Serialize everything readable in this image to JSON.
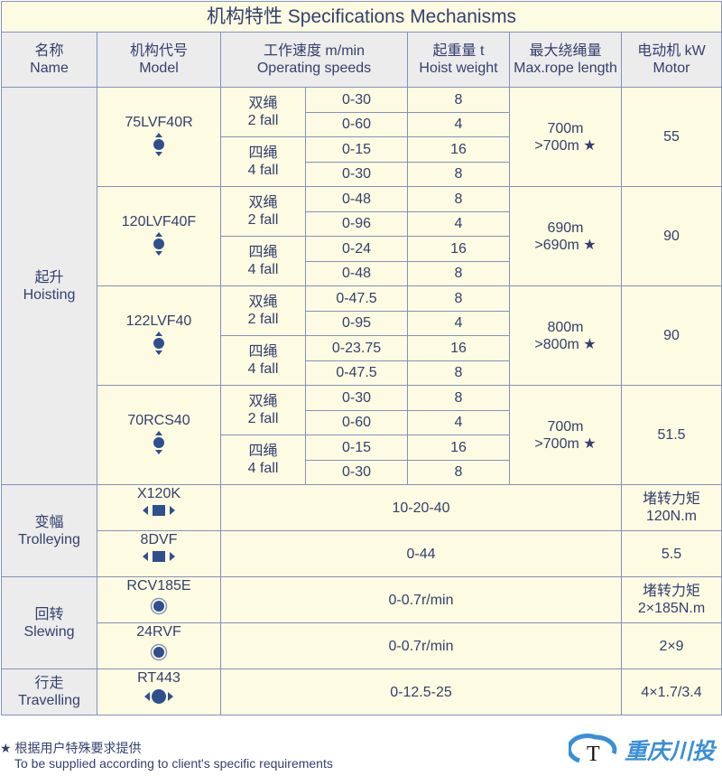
{
  "title": "机构特性 Specifications Mechanisms",
  "headers": [
    {
      "cn": "名称",
      "en": "Name"
    },
    {
      "cn": "机构代号",
      "en": "Model"
    },
    {
      "cn": "工作速度 m/min",
      "en": "Operating speeds"
    },
    {
      "cn": "起重量 t",
      "en": "Hoist weight"
    },
    {
      "cn": "最大绕绳量",
      "en": "Max.rope length"
    },
    {
      "cn": "电动机 kW",
      "en": "Motor"
    }
  ],
  "hoisting": {
    "cn": "起升",
    "en": "Hoisting",
    "models": [
      {
        "model": "75LVF40R",
        "icon": "vertical-arrows-icon",
        "rope": [
          "700m",
          ">700m ★"
        ],
        "motor": "55",
        "falls": [
          {
            "cn": "双绳",
            "en": "2 fall",
            "rows": [
              [
                "0-30",
                "8"
              ],
              [
                "0-60",
                "4"
              ]
            ]
          },
          {
            "cn": "四绳",
            "en": "4 fall",
            "rows": [
              [
                "0-15",
                "16"
              ],
              [
                "0-30",
                "8"
              ]
            ]
          }
        ]
      },
      {
        "model": "120LVF40F",
        "icon": "vertical-arrows-icon",
        "rope": [
          "690m",
          ">690m ★"
        ],
        "motor": "90",
        "falls": [
          {
            "cn": "双绳",
            "en": "2 fall",
            "rows": [
              [
                "0-48",
                "8"
              ],
              [
                "0-96",
                "4"
              ]
            ]
          },
          {
            "cn": "四绳",
            "en": "4 fall",
            "rows": [
              [
                "0-24",
                "16"
              ],
              [
                "0-48",
                "8"
              ]
            ]
          }
        ]
      },
      {
        "model": "122LVF40",
        "icon": "vertical-arrows-icon",
        "rope": [
          "800m",
          ">800m ★"
        ],
        "motor": "90",
        "falls": [
          {
            "cn": "双绳",
            "en": "2 fall",
            "rows": [
              [
                "0-47.5",
                "8"
              ],
              [
                "0-95",
                "4"
              ]
            ]
          },
          {
            "cn": "四绳",
            "en": "4 fall",
            "rows": [
              [
                "0-23.75",
                "16"
              ],
              [
                "0-47.5",
                "8"
              ]
            ]
          }
        ]
      },
      {
        "model": "70RCS40",
        "icon": "vertical-arrows-icon",
        "rope": [
          "700m",
          ">700m ★"
        ],
        "motor": "51.5",
        "falls": [
          {
            "cn": "双绳",
            "en": "2 fall",
            "rows": [
              [
                "0-30",
                "8"
              ],
              [
                "0-60",
                "4"
              ]
            ]
          },
          {
            "cn": "四绳",
            "en": "4 fall",
            "rows": [
              [
                "0-15",
                "16"
              ],
              [
                "0-30",
                "8"
              ]
            ]
          }
        ]
      }
    ]
  },
  "others": [
    {
      "cn": "变幅",
      "en": "Trolleying",
      "items": [
        {
          "model": "X120K",
          "icon": "horizontal-arrows-icon",
          "speed": "10-20-40",
          "motor": [
            "堵转力矩",
            "120N.m"
          ]
        },
        {
          "model": "8DVF",
          "icon": "horizontal-arrows-icon",
          "speed": "0-44",
          "motor": [
            "5.5"
          ]
        }
      ]
    },
    {
      "cn": "回转",
      "en": "Slewing",
      "items": [
        {
          "model": "RCV185E",
          "icon": "rotation-icon",
          "speed": "0-0.7r/min",
          "motor": [
            "堵转力矩",
            "2×185N.m"
          ]
        },
        {
          "model": "24RVF",
          "icon": "rotation-icon",
          "speed": "0-0.7r/min",
          "motor": [
            "2×9"
          ]
        }
      ]
    },
    {
      "cn": "行走",
      "en": "Travelling",
      "items": [
        {
          "model": "RT443",
          "icon": "travel-arrows-icon",
          "speed": "0-12.5-25",
          "motor": [
            "4×1.7/3.4"
          ]
        }
      ]
    }
  ],
  "footer": {
    "note_cn": "★ 根据用户特殊要求提供",
    "note_en": "To be supplied according to client's specific requirements"
  },
  "logo": {
    "mark": "T",
    "brand": "重庆川投"
  },
  "colors": {
    "border": "#8590bf",
    "text": "#34406e",
    "cell": "#fdfbe2",
    "header": "#ececec",
    "icon": "#2f4f8f",
    "brand": "#3a8fd8"
  }
}
